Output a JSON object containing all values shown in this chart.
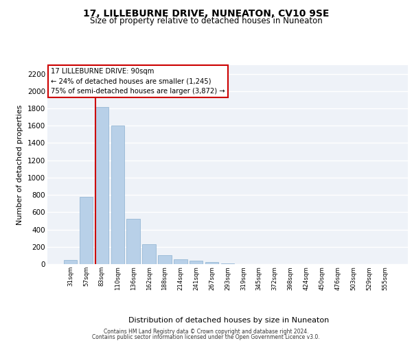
{
  "title": "17, LILLEBURNE DRIVE, NUNEATON, CV10 9SE",
  "subtitle": "Size of property relative to detached houses in Nuneaton",
  "xlabel": "Distribution of detached houses by size in Nuneaton",
  "ylabel": "Number of detached properties",
  "categories": [
    "31sqm",
    "57sqm",
    "83sqm",
    "110sqm",
    "136sqm",
    "162sqm",
    "188sqm",
    "214sqm",
    "241sqm",
    "267sqm",
    "293sqm",
    "319sqm",
    "345sqm",
    "372sqm",
    "398sqm",
    "424sqm",
    "450sqm",
    "476sqm",
    "503sqm",
    "529sqm",
    "555sqm"
  ],
  "values": [
    45,
    780,
    1820,
    1600,
    520,
    230,
    105,
    55,
    38,
    20,
    10,
    0,
    0,
    0,
    0,
    0,
    0,
    0,
    0,
    0,
    0
  ],
  "bar_color": "#b8d0e8",
  "bar_edge_color": "#8ab0d0",
  "vline_color": "#cc0000",
  "vline_bin_index": 2,
  "annotation_box_text": "17 LILLEBURNE DRIVE: 90sqm\n← 24% of detached houses are smaller (1,245)\n75% of semi-detached houses are larger (3,872) →",
  "ylim": [
    0,
    2300
  ],
  "yticks": [
    0,
    200,
    400,
    600,
    800,
    1000,
    1200,
    1400,
    1600,
    1800,
    2000,
    2200
  ],
  "bg_color": "#eef2f8",
  "grid_color": "#ffffff",
  "footer_line1": "Contains HM Land Registry data © Crown copyright and database right 2024.",
  "footer_line2": "Contains public sector information licensed under the Open Government Licence v3.0."
}
